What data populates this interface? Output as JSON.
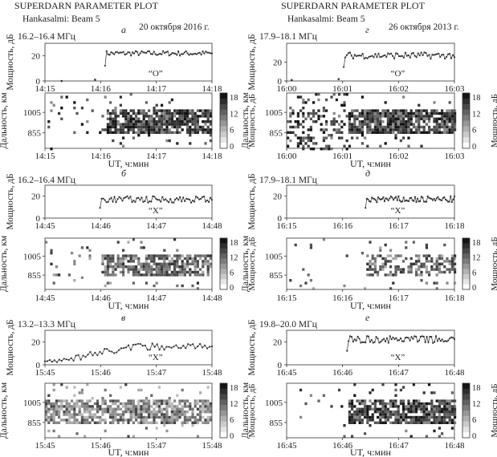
{
  "header": {
    "left_title": "SUPERDARN PARAMETER PLOT",
    "left_subtitle": "Hankasalmi: Beam 5",
    "left_date": "20 октября 2016 г.",
    "right_title": "SUPERDARN PARAMETER PLOT",
    "right_subtitle": "Hankasalmi: Beam 5",
    "right_date": "26 октября 2013 г."
  },
  "axis_labels": {
    "power": "Мощность, дБ",
    "range": "Дальность, км",
    "time": "UT, ч:мин",
    "colorbar": "Мощность, дБ"
  },
  "colorbar_ticks": [
    "18",
    "12",
    "6",
    "0"
  ],
  "chart_data": [
    {
      "id": "a",
      "type": "line",
      "panel_letter": "а",
      "freq": "16.2–16.4 МГц",
      "mode": "“O”",
      "x": [
        "14:15",
        "14:16",
        "14:17",
        "14:18"
      ],
      "ylim": [
        0,
        30
      ],
      "yticks": [
        "20",
        "0"
      ],
      "start_frac": 0.36,
      "level": 22,
      "amp": 2.0,
      "early_points": [
        [
          0.1,
          0
        ],
        [
          0.3,
          1
        ]
      ],
      "range_ticks": [
        "1005",
        "855"
      ],
      "range_start_frac": 0.36,
      "range_density": 0.85,
      "range_intensity": "dark",
      "range_sparse_early": 0.06
    },
    {
      "id": "g",
      "type": "line",
      "panel_letter": "г",
      "freq": "17.9–18.1 МГц",
      "mode": "“O”",
      "x": [
        "16:00",
        "16:01",
        "16:02",
        "16:03"
      ],
      "ylim": [
        0,
        40
      ],
      "yticks": [
        "20",
        "0"
      ],
      "start_frac": 0.34,
      "level": 27,
      "amp": 3.5,
      "early_points": [
        [
          0.03,
          1
        ],
        [
          0.31,
          2
        ]
      ],
      "range_ticks": [
        "1005",
        "855"
      ],
      "range_start_frac": 0.36,
      "range_density": 0.85,
      "range_intensity": "dark",
      "range_sparse_early": 0.35
    },
    {
      "id": "b",
      "type": "line",
      "panel_letter": "б",
      "freq": "16.2–16.4 МГц",
      "mode": "“X”",
      "x": [
        "14:45",
        "14:46",
        "14:47",
        "14:48"
      ],
      "ylim": [
        0,
        30
      ],
      "yticks": [
        "20",
        "0"
      ],
      "start_frac": 0.33,
      "level": 17,
      "amp": 3.0,
      "early_points": [],
      "range_ticks": [
        "1005",
        "855"
      ],
      "range_start_frac": 0.33,
      "range_density": 0.75,
      "range_intensity": "mid",
      "range_sparse_early": 0.05
    },
    {
      "id": "d",
      "type": "line",
      "panel_letter": "д",
      "freq": "17.9–18.1 МГц",
      "mode": "“X”",
      "x": [
        "16:15",
        "16:16",
        "16:17",
        "16:18"
      ],
      "ylim": [
        0,
        30
      ],
      "yticks": [
        "20",
        "0"
      ],
      "start_frac": 0.47,
      "level": 17,
      "amp": 3.0,
      "early_points": [],
      "range_ticks": [
        "1005",
        "855"
      ],
      "range_start_frac": 0.47,
      "range_density": 0.5,
      "range_intensity": "mid",
      "range_sparse_early": 0.03
    },
    {
      "id": "v",
      "type": "line",
      "panel_letter": "в",
      "freq": "13.2–13.3 МГц",
      "mode": "“X”",
      "x": [
        "15:45",
        "15:46",
        "15:47",
        "15:48"
      ],
      "ylim": [
        0,
        30
      ],
      "yticks": [
        "20",
        "0"
      ],
      "start_frac": 0.0,
      "level": 13,
      "amp": 3.0,
      "rising": true,
      "early_points": [],
      "range_ticks": [
        "1005",
        "855"
      ],
      "range_start_frac": 0.0,
      "range_density": 0.75,
      "range_intensity": "light",
      "range_sparse_early": 0.0
    },
    {
      "id": "e",
      "type": "line",
      "panel_letter": "е",
      "freq": "19.8–20.0 МГц",
      "mode": "“X”",
      "x": [
        "16:45",
        "16:46",
        "16:47",
        "16:48"
      ],
      "ylim": [
        0,
        30
      ],
      "yticks": [
        "20",
        "0"
      ],
      "start_frac": 0.36,
      "level": 22,
      "amp": 3.0,
      "early_points": [],
      "range_ticks": [
        "1005",
        "855"
      ],
      "range_start_frac": 0.36,
      "range_density": 0.8,
      "range_intensity": "dark",
      "range_sparse_early": 0.03
    }
  ]
}
